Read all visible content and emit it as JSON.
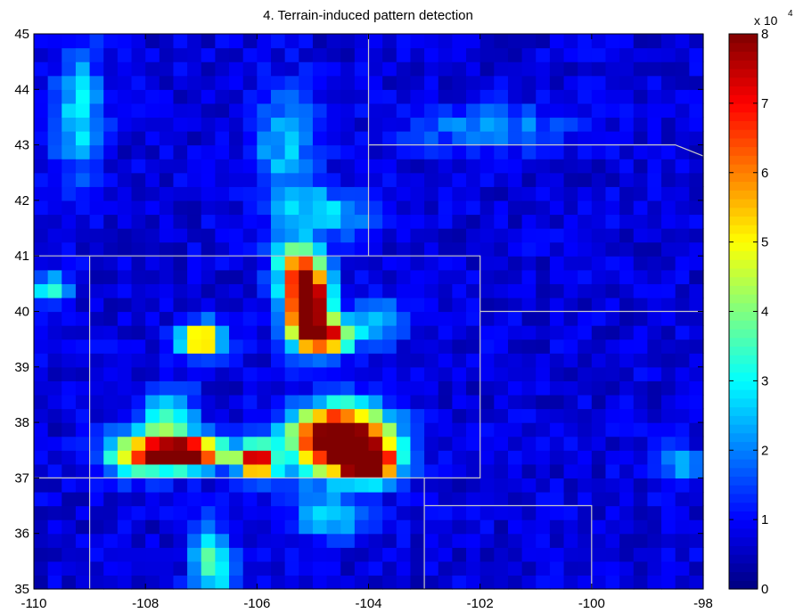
{
  "chart_data": {
    "type": "heatmap",
    "title": "4. Terrain-induced pattern detection",
    "xlabel": "",
    "ylabel": "",
    "xlim": [
      -110,
      -98
    ],
    "ylim": [
      35,
      45
    ],
    "x_ticks": [
      -110,
      -108,
      -106,
      -104,
      -102,
      -100,
      -98
    ],
    "x_tick_labels": [
      "-110",
      "-108",
      "-106",
      "-104",
      "-102",
      "-100",
      "-98"
    ],
    "y_ticks": [
      35,
      36,
      37,
      38,
      39,
      40,
      41,
      42,
      43,
      44,
      45
    ],
    "y_tick_labels": [
      "35",
      "36",
      "37",
      "38",
      "39",
      "40",
      "41",
      "42",
      "43",
      "44",
      "45"
    ],
    "colorbar": {
      "min": 0,
      "max": 8,
      "ticks": [
        0,
        1,
        2,
        3,
        4,
        5,
        6,
        7,
        8
      ],
      "tick_labels": [
        "0",
        "1",
        "2",
        "3",
        "4",
        "5",
        "6",
        "7",
        "8"
      ],
      "multiplier_base": "x 10",
      "multiplier_exponent": "4",
      "colormap": "jet"
    },
    "grid_resolution_deg": 0.25,
    "background_level": 0.9,
    "hotspots": [
      {
        "lon": -105.1,
        "lat": 40.2,
        "peak": 9.5,
        "sx": 0.28,
        "sy": 0.45
      },
      {
        "lon": -104.8,
        "lat": 39.55,
        "peak": 6.5,
        "sx": 0.35,
        "sy": 0.2
      },
      {
        "lon": -105.3,
        "lat": 40.9,
        "peak": 3.0,
        "sx": 0.3,
        "sy": 0.3
      },
      {
        "lon": -104.5,
        "lat": 37.7,
        "peak": 10.0,
        "sx": 0.6,
        "sy": 0.4
      },
      {
        "lon": -104.0,
        "lat": 37.25,
        "peak": 7.5,
        "sx": 0.35,
        "sy": 0.2
      },
      {
        "lon": -107.4,
        "lat": 37.45,
        "peak": 9.0,
        "sx": 0.55,
        "sy": 0.2
      },
      {
        "lon": -107.6,
        "lat": 38.1,
        "peak": 3.0,
        "sx": 0.35,
        "sy": 0.35
      },
      {
        "lon": -106.0,
        "lat": 37.3,
        "peak": 7.5,
        "sx": 0.22,
        "sy": 0.2
      },
      {
        "lon": -107.0,
        "lat": 39.5,
        "peak": 6.0,
        "sx": 0.25,
        "sy": 0.2
      },
      {
        "lon": -108.3,
        "lat": 37.4,
        "peak": 2.5,
        "sx": 0.4,
        "sy": 0.3
      },
      {
        "lon": -106.8,
        "lat": 35.5,
        "peak": 3.0,
        "sx": 0.25,
        "sy": 0.45
      },
      {
        "lon": -104.8,
        "lat": 41.8,
        "peak": 2.0,
        "sx": 0.6,
        "sy": 0.3
      },
      {
        "lon": -105.5,
        "lat": 43.0,
        "peak": 1.8,
        "sx": 0.4,
        "sy": 0.7
      },
      {
        "lon": -109.2,
        "lat": 43.6,
        "peak": 2.2,
        "sx": 0.3,
        "sy": 0.8
      },
      {
        "lon": -109.7,
        "lat": 40.4,
        "peak": 2.5,
        "sx": 0.25,
        "sy": 0.2
      },
      {
        "lon": -103.8,
        "lat": 39.8,
        "peak": 1.8,
        "sx": 0.3,
        "sy": 0.3
      },
      {
        "lon": -101.8,
        "lat": 43.3,
        "peak": 1.4,
        "sx": 1.0,
        "sy": 0.3
      },
      {
        "lon": -98.4,
        "lat": 37.2,
        "peak": 1.8,
        "sx": 0.25,
        "sy": 0.25
      },
      {
        "lon": -104.7,
        "lat": 36.3,
        "peak": 1.8,
        "sx": 0.5,
        "sy": 0.3
      }
    ],
    "state_boundaries": [
      [
        [
          -110,
          41
        ],
        [
          -102,
          41
        ],
        [
          -102,
          37
        ],
        [
          -110,
          37
        ]
      ],
      [
        [
          -109,
          41
        ],
        [
          -109,
          35
        ]
      ],
      [
        [
          -104,
          45
        ],
        [
          -104,
          41
        ]
      ],
      [
        [
          -104,
          43
        ],
        [
          -98.5,
          43
        ],
        [
          -98,
          42.8
        ]
      ],
      [
        [
          -102,
          40
        ],
        [
          -98,
          40
        ]
      ],
      [
        [
          -103,
          37
        ],
        [
          -103,
          35
        ]
      ],
      [
        [
          -103,
          36.5
        ],
        [
          -100,
          36.5
        ],
        [
          -100,
          35
        ]
      ]
    ],
    "boundary_color": "#c8c8c8",
    "grid": false,
    "legend": "none"
  }
}
